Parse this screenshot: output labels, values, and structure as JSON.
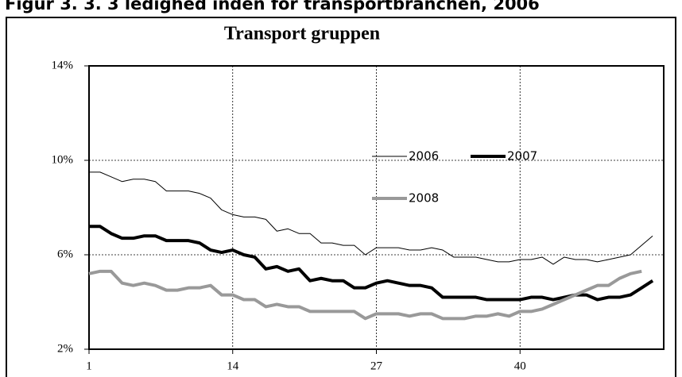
{
  "chart_data": {
    "type": "line",
    "figure_caption": "Figur 3. 3. 3 ledighed inden for transportbranchen, 2006",
    "title": "Transport gruppen",
    "x": [
      1,
      2,
      3,
      4,
      5,
      6,
      7,
      8,
      9,
      10,
      11,
      12,
      13,
      14,
      15,
      16,
      17,
      18,
      19,
      20,
      21,
      22,
      23,
      24,
      25,
      26,
      27,
      28,
      29,
      30,
      31,
      32,
      33,
      34,
      35,
      36,
      37,
      38,
      39,
      40,
      41,
      42,
      43,
      44,
      45,
      46,
      47,
      48,
      49,
      50,
      51,
      52
    ],
    "series": [
      {
        "name": "2006",
        "color": "#000000",
        "values": [
          9.5,
          9.5,
          9.3,
          9.1,
          9.2,
          9.2,
          9.1,
          8.7,
          8.7,
          8.7,
          8.6,
          8.4,
          7.9,
          7.7,
          7.6,
          7.6,
          7.5,
          7.0,
          7.1,
          6.9,
          6.9,
          6.5,
          6.5,
          6.4,
          6.4,
          6.0,
          6.3,
          6.3,
          6.3,
          6.2,
          6.2,
          6.3,
          6.2,
          5.9,
          5.9,
          5.9,
          5.8,
          5.7,
          5.7,
          5.8,
          5.8,
          5.9,
          5.6,
          5.9,
          5.8,
          5.8,
          5.7,
          5.8,
          5.9,
          6.0,
          6.4,
          6.8
        ]
      },
      {
        "name": "2007",
        "color": "#000000",
        "values": [
          7.2,
          7.2,
          6.9,
          6.7,
          6.7,
          6.8,
          6.8,
          6.6,
          6.6,
          6.6,
          6.5,
          6.2,
          6.1,
          6.2,
          6.0,
          5.9,
          5.4,
          5.5,
          5.3,
          5.4,
          4.9,
          5.0,
          4.9,
          4.9,
          4.6,
          4.6,
          4.8,
          4.9,
          4.8,
          4.7,
          4.7,
          4.6,
          4.2,
          4.2,
          4.2,
          4.2,
          4.1,
          4.1,
          4.1,
          4.1,
          4.2,
          4.2,
          4.1,
          4.2,
          4.3,
          4.3,
          4.1,
          4.2,
          4.2,
          4.3,
          4.6,
          4.9
        ]
      },
      {
        "name": "2008",
        "color": "#999999",
        "values": [
          5.2,
          5.3,
          5.3,
          4.8,
          4.7,
          4.8,
          4.7,
          4.5,
          4.5,
          4.6,
          4.6,
          4.7,
          4.3,
          4.3,
          4.1,
          4.1,
          3.8,
          3.9,
          3.8,
          3.8,
          3.6,
          3.6,
          3.6,
          3.6,
          3.6,
          3.3,
          3.5,
          3.5,
          3.5,
          3.4,
          3.5,
          3.5,
          3.3,
          3.3,
          3.3,
          3.4,
          3.4,
          3.5,
          3.4,
          3.6,
          3.6,
          3.7,
          3.9,
          4.1,
          4.3,
          4.5,
          4.7,
          4.7,
          5.0,
          5.2,
          5.3,
          null
        ]
      }
    ],
    "xlim": [
      1,
      53
    ],
    "xticks": [
      1,
      14,
      27,
      40
    ],
    "ylim": [
      2,
      14
    ],
    "yticks": [
      {
        "value": 2,
        "label": "2%"
      },
      {
        "value": 6,
        "label": "6%"
      },
      {
        "value": 10,
        "label": "10%"
      },
      {
        "value": 14,
        "label": "14%"
      }
    ],
    "grid": true
  }
}
